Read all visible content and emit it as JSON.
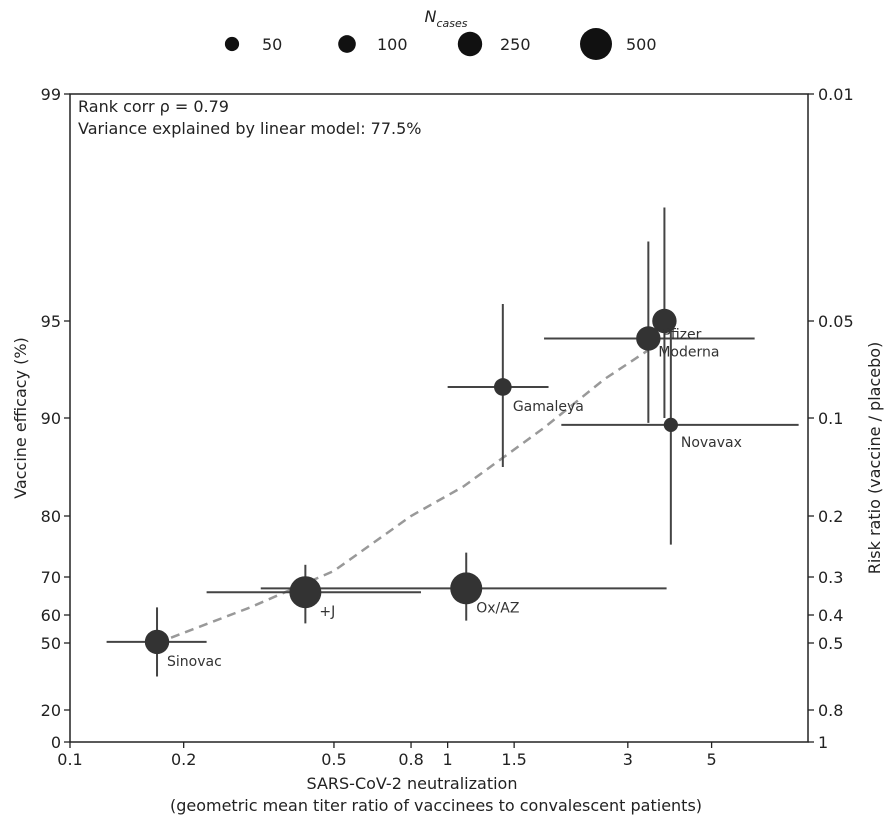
{
  "chart_data": {
    "type": "scatter",
    "xlabel": "SARS-CoV-2 neutralization",
    "xlabel_sub": "(geometric mean titer ratio of vaccinees to convalescent patients)",
    "ylabel": "Vaccine efficacy (%)",
    "ylabel_right": "Risk ratio (vaccine / placebo)",
    "x_scale": "log",
    "xlim": [
      0.1,
      9
    ],
    "y_scale": "logit of efficacy (reciprocal risk ratio)",
    "ylim": [
      0,
      99
    ],
    "x_ticks": [
      "0.1",
      "0.2",
      "0.5",
      "0.8",
      "1",
      "1.5",
      "3",
      "5"
    ],
    "y_ticks": [
      "0",
      "20",
      "50",
      "60",
      "70",
      "80",
      "90",
      "95",
      "99"
    ],
    "y2_ticks": [
      "1",
      "0.8",
      "0.5",
      "0.4",
      "0.3",
      "0.2",
      "0.1",
      "0.05",
      "0.01"
    ],
    "annotations": [
      "Rank corr ρ = 0.79",
      "Variance explained by linear model: 77.5%"
    ],
    "legend": {
      "title": "N",
      "title_sub": "cases",
      "placement": "top-center",
      "entries": [
        {
          "label": "50",
          "n": 50
        },
        {
          "label": "100",
          "n": 100
        },
        {
          "label": "250",
          "n": 250
        },
        {
          "label": "500",
          "n": 500
        }
      ]
    },
    "points": [
      {
        "label": "Sinovac",
        "x": 0.17,
        "y": 50.4,
        "x_err": [
          0.125,
          0.23
        ],
        "y_err": [
          35,
          62
        ],
        "n": 250
      },
      {
        "label": "J&J",
        "display_label": "+J",
        "x": 0.42,
        "y": 66,
        "x_err": [
          0.23,
          0.85
        ],
        "y_err": [
          57,
          72
        ],
        "n": 500
      },
      {
        "label": "Ox/AZ",
        "x": 1.12,
        "y": 67,
        "x_err": [
          0.32,
          3.8
        ],
        "y_err": [
          58,
          74
        ],
        "n": 500
      },
      {
        "label": "Gamaleya",
        "x": 1.4,
        "y": 91.6,
        "x_err": [
          1.0,
          1.85
        ],
        "y_err": [
          85,
          95.3
        ],
        "n": 100
      },
      {
        "label": "Moderna",
        "x": 3.4,
        "y": 94.1,
        "x_err": [
          1.8,
          6.5
        ],
        "y_err": [
          89.5,
          96.4
        ],
        "n": 250
      },
      {
        "label": "Pfizer",
        "x": 3.75,
        "y": 95,
        "x_err": [
          3.75,
          3.75
        ],
        "y_err": [
          90,
          97
        ],
        "n": 250
      },
      {
        "label": "Novavax",
        "x": 3.9,
        "y": 89.3,
        "x_err": [
          2.0,
          8.5
        ],
        "y_err": [
          75.3,
          94.8
        ],
        "n": 50
      }
    ],
    "trend_line": {
      "style": "dashed",
      "points": [
        [
          0.17,
          50
        ],
        [
          0.3,
          62
        ],
        [
          0.5,
          71
        ],
        [
          0.8,
          80
        ],
        [
          1.1,
          83
        ],
        [
          1.8,
          89
        ],
        [
          2.6,
          92
        ],
        [
          3.4,
          93.5
        ]
      ]
    }
  }
}
